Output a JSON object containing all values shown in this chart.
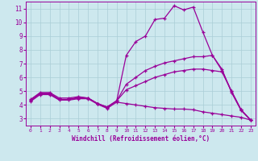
{
  "xlabel": "Windchill (Refroidissement éolien,°C)",
  "xlim": [
    -0.5,
    23.5
  ],
  "ylim": [
    2.5,
    11.5
  ],
  "xticks": [
    0,
    1,
    2,
    3,
    4,
    5,
    6,
    7,
    8,
    9,
    10,
    11,
    12,
    13,
    14,
    15,
    16,
    17,
    18,
    19,
    20,
    21,
    22,
    23
  ],
  "yticks": [
    3,
    4,
    5,
    6,
    7,
    8,
    9,
    10,
    11
  ],
  "bg_color": "#cde8ee",
  "grid_color": "#aacdd6",
  "line_color": "#990099",
  "curves": [
    [
      4.4,
      4.9,
      4.9,
      4.5,
      4.5,
      4.6,
      4.5,
      4.1,
      3.8,
      4.3,
      7.6,
      8.6,
      9.0,
      10.2,
      10.3,
      11.2,
      10.9,
      11.1,
      9.3,
      7.6,
      6.6,
      4.9,
      3.6,
      2.9
    ],
    [
      4.35,
      4.85,
      4.85,
      4.4,
      4.4,
      4.55,
      4.5,
      4.1,
      3.85,
      4.3,
      5.5,
      6.0,
      6.5,
      6.8,
      7.05,
      7.2,
      7.35,
      7.5,
      7.5,
      7.6,
      6.5,
      5.0,
      3.65,
      2.9
    ],
    [
      4.3,
      4.8,
      4.8,
      4.4,
      4.4,
      4.5,
      4.5,
      4.1,
      3.85,
      4.3,
      5.1,
      5.4,
      5.7,
      6.0,
      6.2,
      6.4,
      6.5,
      6.6,
      6.6,
      6.5,
      6.4,
      5.0,
      3.65,
      2.9
    ],
    [
      4.25,
      4.75,
      4.75,
      4.35,
      4.35,
      4.45,
      4.45,
      4.05,
      3.75,
      4.2,
      4.1,
      4.0,
      3.9,
      3.8,
      3.75,
      3.7,
      3.7,
      3.65,
      3.5,
      3.4,
      3.3,
      3.2,
      3.1,
      2.9
    ]
  ]
}
